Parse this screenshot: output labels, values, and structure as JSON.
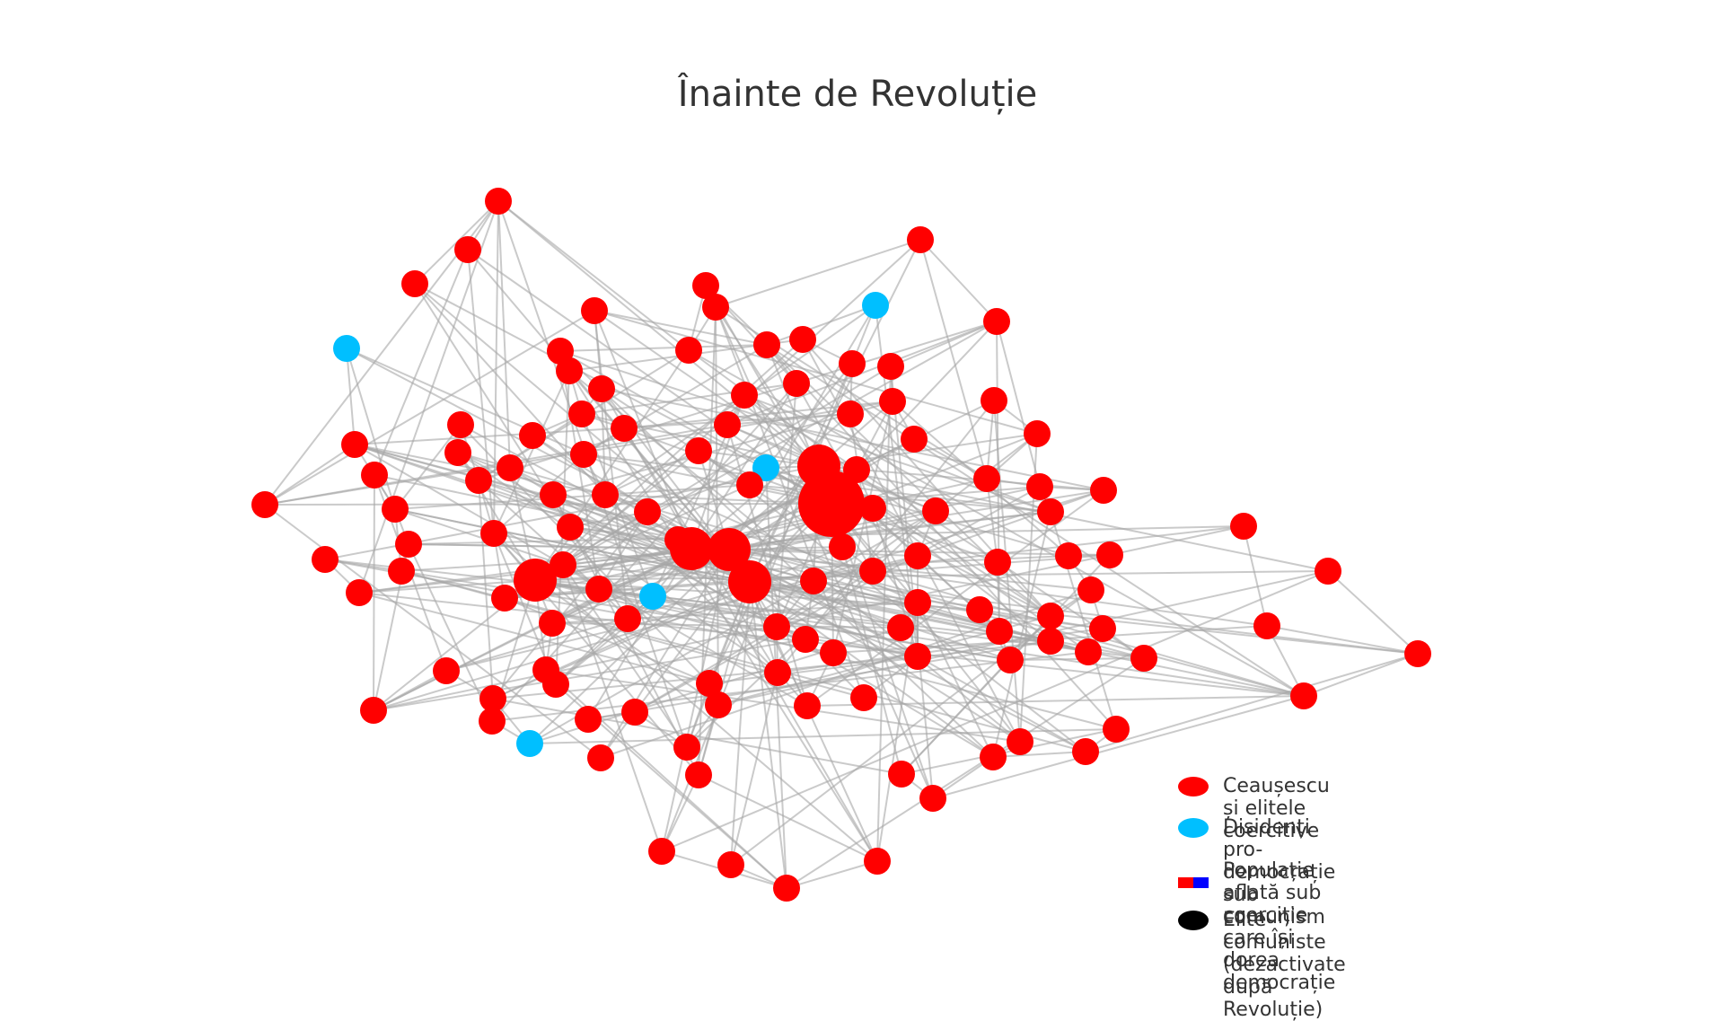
{
  "title": "Înainte de Revoluție",
  "colors": {
    "coercive_elite": "#ff0000",
    "dissident": "#00bfff",
    "population_red": "#ff0000",
    "population_blue": "#0000ff",
    "deactivated_elite": "#000000",
    "edge": "#a6a6a6"
  },
  "legend": [
    {
      "label": "Ceaușescu și elitele coercitive",
      "symbol": "red-dot"
    },
    {
      "label": "Disidenți pro-democrație sub comunism",
      "symbol": "blue-dot"
    },
    {
      "label": "Populație aflată sub coerciție\ncare își dorea democrație",
      "symbol": "red-blue-split"
    },
    {
      "label": "Elite comuniste (dezactivate după Revoluție)",
      "symbol": "black-dot"
    }
  ]
}
